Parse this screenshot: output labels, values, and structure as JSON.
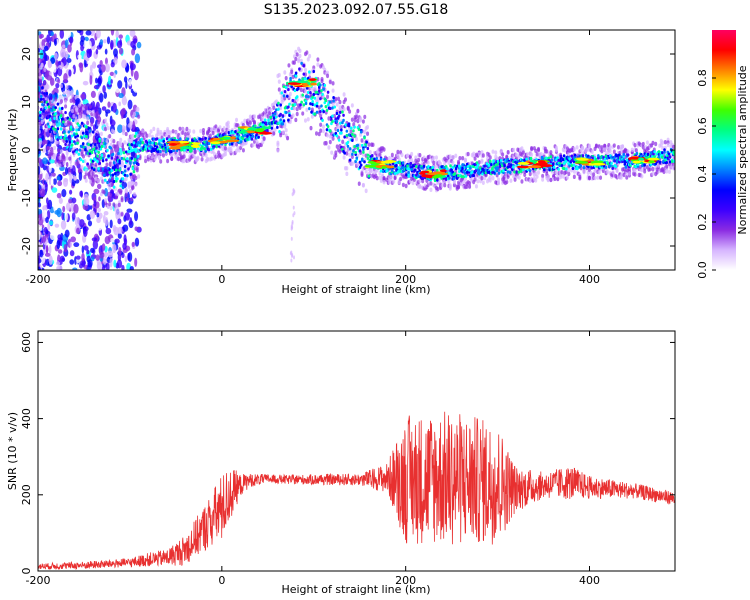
{
  "title": "S135.2023.092.07.55.G18",
  "chart_data": [
    {
      "type": "heatmap",
      "xlabel": "Height of straight line (km)",
      "ylabel": "Frequency (Hz)",
      "xlim": [
        -200,
        493
      ],
      "ylim": [
        -25,
        25
      ],
      "xticks": [
        -200,
        0,
        200,
        400
      ],
      "yticks": [
        -20,
        -10,
        0,
        10,
        20
      ],
      "colorbar": {
        "label": "Normalized spectral amplitude",
        "range": [
          0,
          1
        ],
        "ticks": [
          "0.0",
          "0.2",
          "0.4",
          "0.6",
          "0.8"
        ],
        "stops": [
          "#ffffff",
          "#d6b4ff",
          "#8a2be2",
          "#3c00ff",
          "#0000ff",
          "#0080ff",
          "#00ffff",
          "#00ff80",
          "#40ff00",
          "#ffff00",
          "#ff8000",
          "#ff0000",
          "#ff0060"
        ]
      },
      "ridge": {
        "x": [
          -200,
          -180,
          -160,
          -140,
          -125,
          -110,
          -100,
          -90,
          -80,
          -50,
          -20,
          0,
          20,
          40,
          55,
          70,
          85,
          100,
          120,
          140,
          160,
          180,
          200,
          230,
          260,
          300,
          340,
          380,
          420,
          460,
          493
        ],
        "y": [
          10,
          6,
          3,
          0,
          -3,
          -5,
          -2,
          1,
          1,
          1,
          1,
          2,
          3,
          4,
          6,
          10,
          14,
          12,
          7,
          2,
          -2,
          -3.5,
          -4,
          -5,
          -4.5,
          -3.5,
          -3,
          -2.5,
          -2.5,
          -2,
          -1
        ]
      },
      "hotspots": [
        {
          "x": -40,
          "y": 1
        },
        {
          "x": 0,
          "y": 2
        },
        {
          "x": 35,
          "y": 4
        },
        {
          "x": 90,
          "y": 14
        },
        {
          "x": 170,
          "y": -3
        },
        {
          "x": 230,
          "y": -5
        },
        {
          "x": 340,
          "y": -3
        },
        {
          "x": 400,
          "y": -2.5
        },
        {
          "x": 460,
          "y": -2
        }
      ]
    },
    {
      "type": "line",
      "xlabel": "Height of straight line (km)",
      "ylabel": "SNR (10 * v/v)",
      "xlim": [
        -200,
        493
      ],
      "ylim": [
        0,
        630
      ],
      "xticks": [
        -200,
        0,
        200,
        400
      ],
      "yticks": [
        0,
        200,
        400,
        600
      ],
      "color": "#e83030",
      "series": [
        {
          "name": "SNR",
          "x": [
            -200,
            -150,
            -100,
            -80,
            -60,
            -40,
            -20,
            0,
            10,
            20,
            30,
            50,
            70,
            100,
            150,
            180,
            200,
            250,
            300,
            320,
            350,
            380,
            400,
            450,
            493
          ],
          "y": [
            12,
            15,
            22,
            30,
            35,
            55,
            110,
            165,
            205,
            225,
            238,
            242,
            240,
            240,
            240,
            244,
            240,
            245,
            230,
            215,
            225,
            232,
            220,
            210,
            190
          ],
          "amplitude": [
            8,
            10,
            12,
            18,
            22,
            40,
            60,
            90,
            70,
            30,
            18,
            12,
            12,
            14,
            16,
            40,
            170,
            180,
            160,
            60,
            35,
            45,
            30,
            20,
            18
          ]
        }
      ]
    }
  ]
}
